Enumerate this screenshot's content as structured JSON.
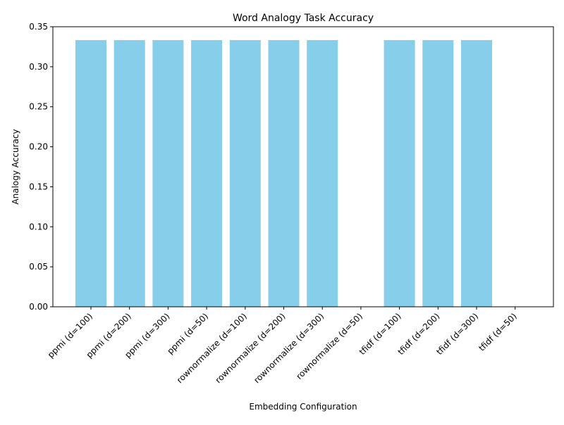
{
  "chart_data": {
    "type": "bar",
    "title": "Word Analogy Task Accuracy",
    "xlabel": "Embedding Configuration",
    "ylabel": "Analogy Accuracy",
    "categories": [
      "ppmi (d=100)",
      "ppmi (d=200)",
      "ppmi (d=300)",
      "ppmi (d=50)",
      "rownormalize (d=100)",
      "rownormalize (d=200)",
      "rownormalize (d=300)",
      "rownormalize (d=50)",
      "tfidf (d=100)",
      "tfidf (d=200)",
      "tfidf (d=300)",
      "tfidf (d=50)"
    ],
    "values": [
      0.3333,
      0.3333,
      0.3333,
      0.3333,
      0.3333,
      0.3333,
      0.3333,
      0,
      0.3333,
      0.3333,
      0.3333,
      0
    ],
    "ylim": [
      0,
      0.35
    ],
    "yticks": [
      "0.00",
      "0.05",
      "0.10",
      "0.15",
      "0.20",
      "0.25",
      "0.30",
      "0.35"
    ],
    "bar_color": "#87ceeb",
    "grid": false
  }
}
